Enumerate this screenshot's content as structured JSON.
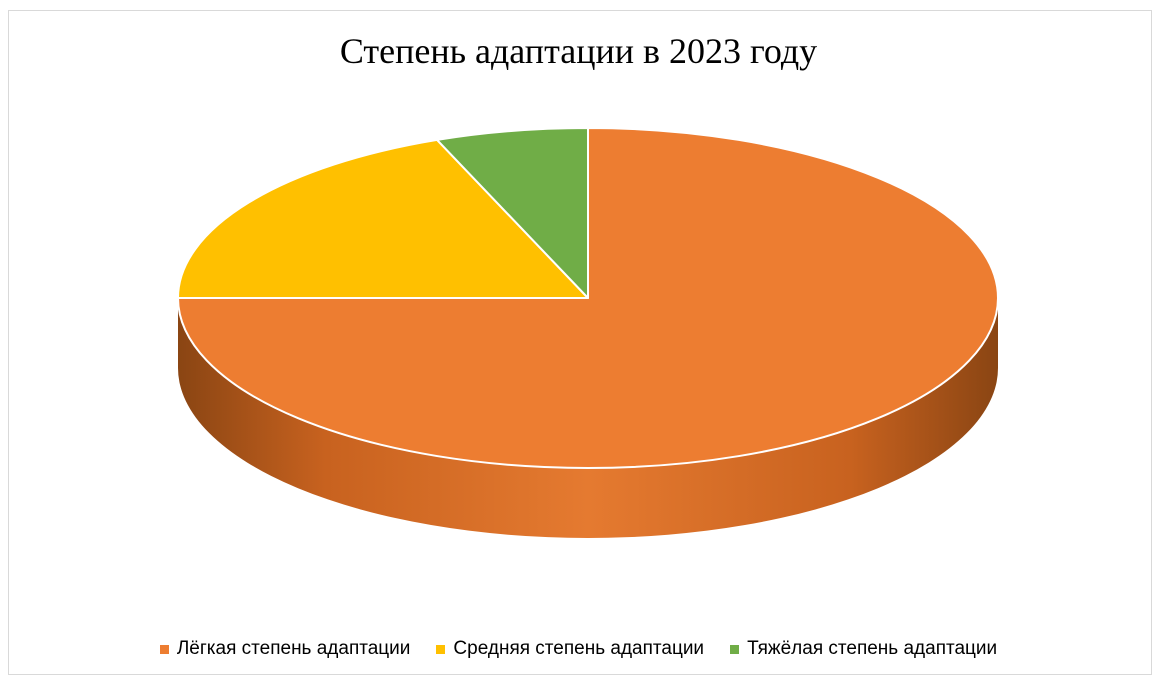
{
  "chart_data": {
    "type": "pie",
    "style": "3d",
    "title": "Степень адаптации в 2023 году",
    "series": [
      {
        "name": "Лёгкая степень адаптации",
        "value": 75,
        "color": "#ED7D31"
      },
      {
        "name": "Средняя степень адаптации",
        "value": 19,
        "color": "#FFC000"
      },
      {
        "name": "Тяжёлая степень адаптации",
        "value": 6,
        "color": "#70AD47"
      }
    ],
    "legend_position": "bottom"
  }
}
